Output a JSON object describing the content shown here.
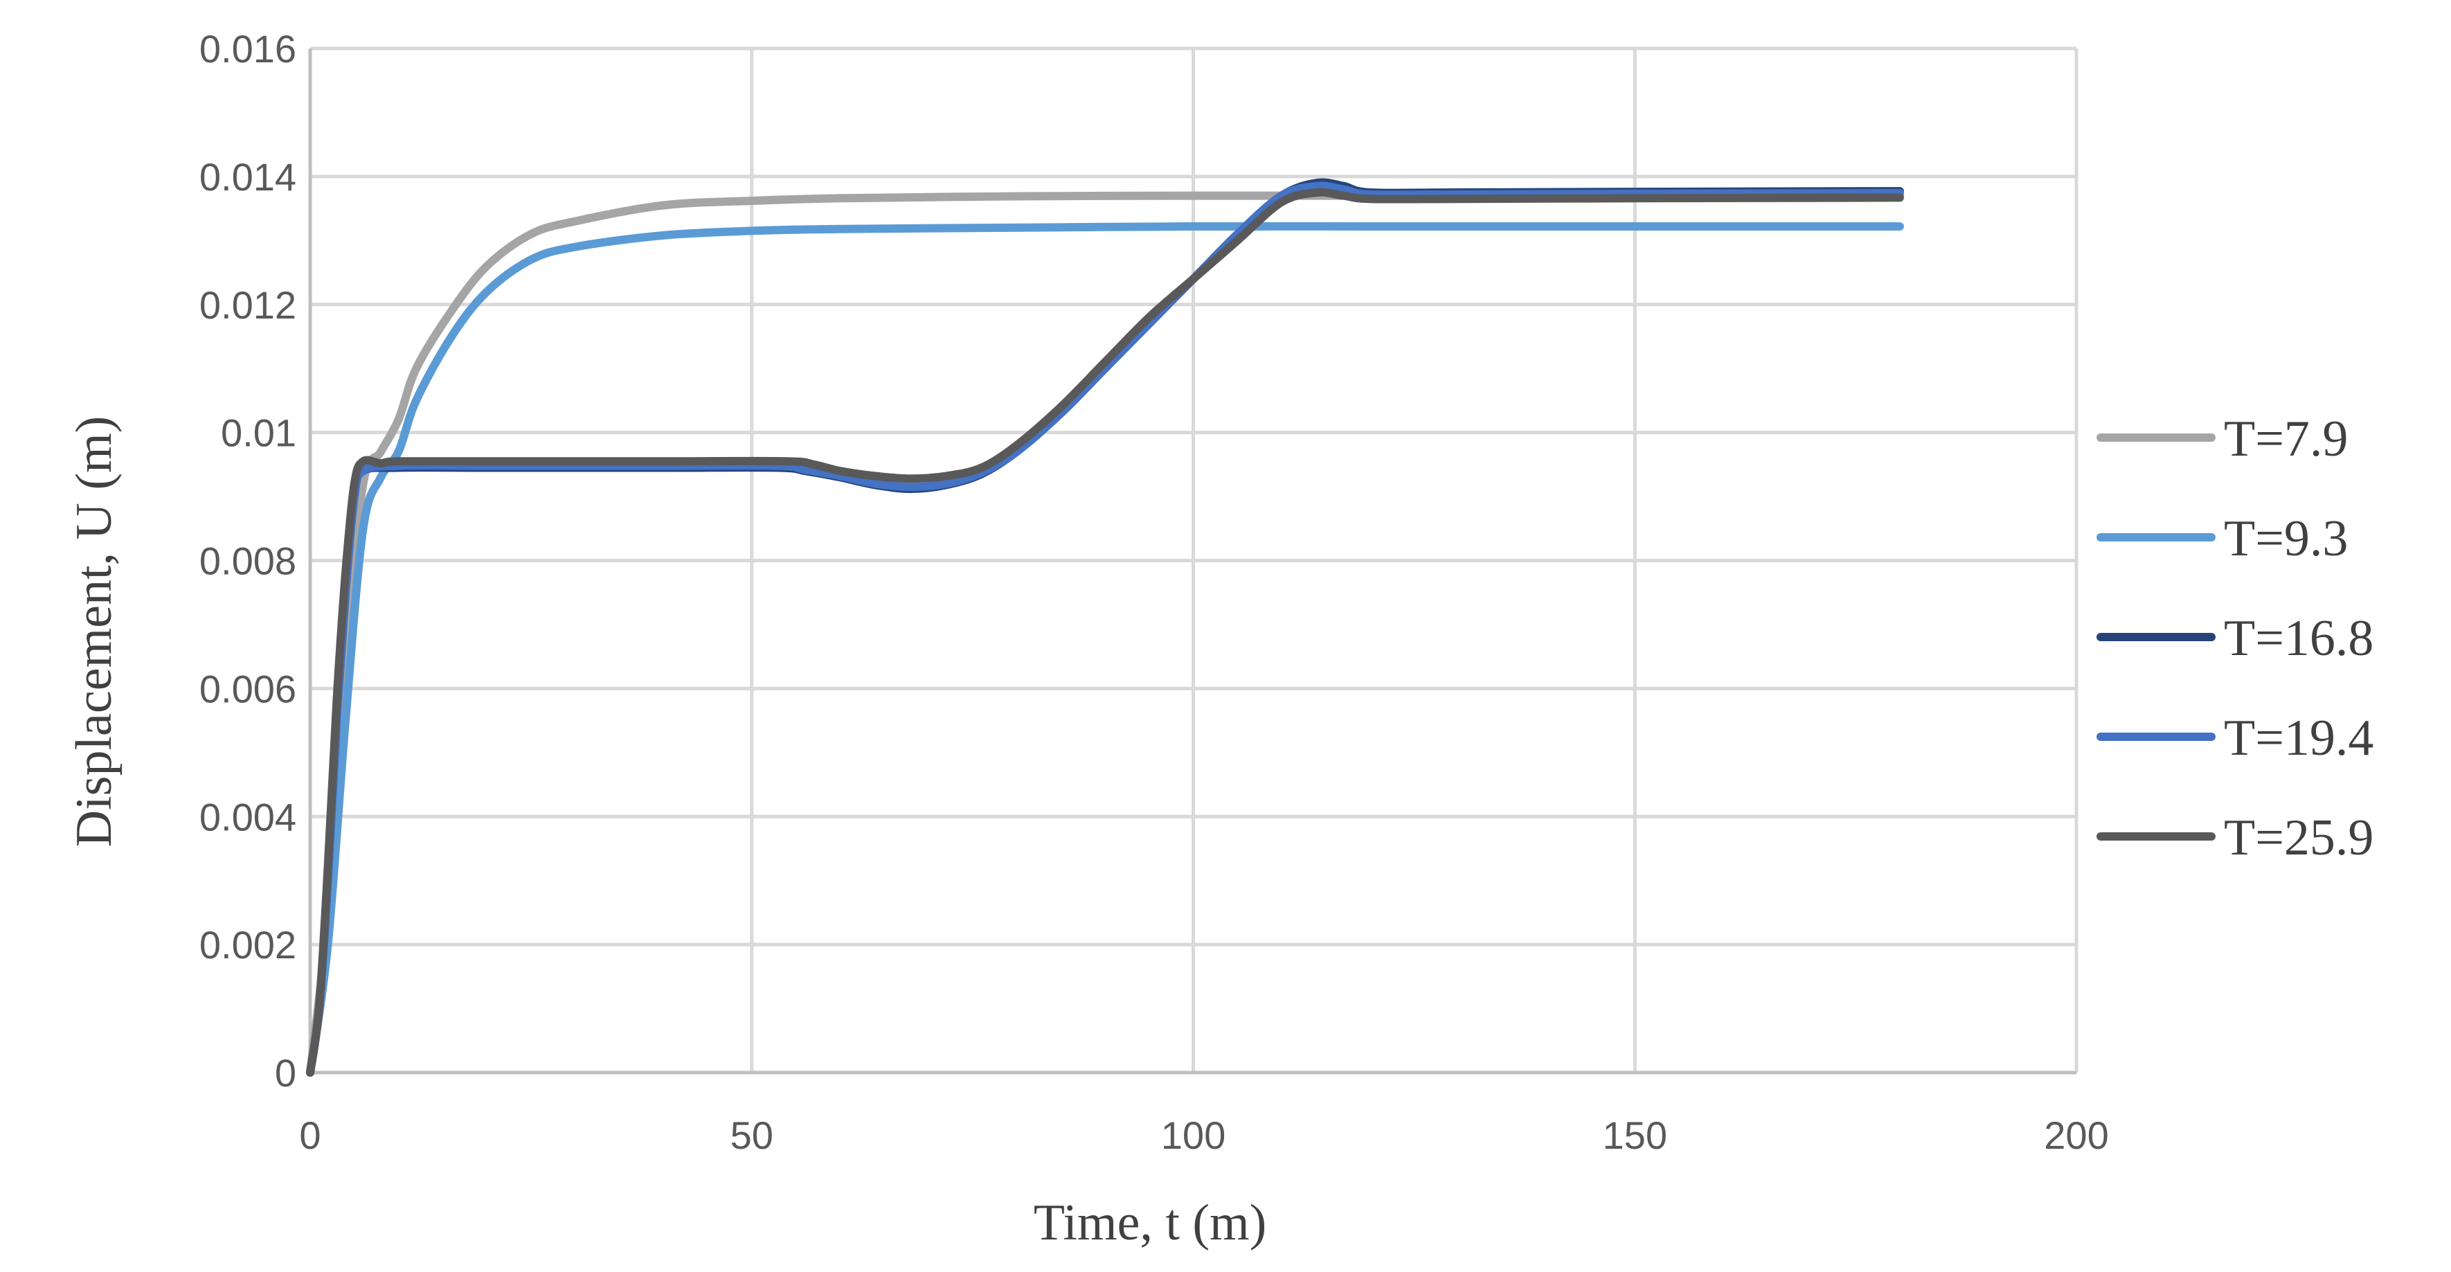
{
  "chart_data": {
    "type": "line",
    "title": "",
    "xlabel": "Time, t (m)",
    "ylabel": "Displacement, U (m)",
    "xlim": [
      0,
      200
    ],
    "ylim": [
      0,
      0.016
    ],
    "x_ticks": [
      0,
      50,
      100,
      150,
      200
    ],
    "y_ticks": [
      0,
      0.002,
      0.004,
      0.006,
      0.008,
      0.01,
      0.012,
      0.014,
      0.016
    ],
    "x_tick_labels": [
      "0",
      "50",
      "100",
      "150",
      "200"
    ],
    "y_tick_labels": [
      "0",
      "0.002",
      "0.004",
      "0.006",
      "0.008",
      "0.01",
      "0.012",
      "0.014",
      "0.016"
    ],
    "grid": true,
    "legend_position": "right",
    "series": [
      {
        "name": "T=7.9",
        "color": "#a5a5a5",
        "points": [
          [
            0,
            0
          ],
          [
            2,
            0.0025
          ],
          [
            4,
            0.0065
          ],
          [
            6,
            0.0092
          ],
          [
            8,
            0.0097
          ],
          [
            10,
            0.0102
          ],
          [
            12,
            0.011
          ],
          [
            16,
            0.0119
          ],
          [
            20,
            0.0126
          ],
          [
            25,
            0.0131
          ],
          [
            30,
            0.0133
          ],
          [
            40,
            0.01355
          ],
          [
            50,
            0.01362
          ],
          [
            60,
            0.01366
          ],
          [
            80,
            0.01369
          ],
          [
            100,
            0.0137
          ],
          [
            120,
            0.0137
          ],
          [
            140,
            0.0137
          ],
          [
            160,
            0.0137
          ],
          [
            180,
            0.0137
          ]
        ]
      },
      {
        "name": "T=9.3",
        "color": "#5b9bd5",
        "points": [
          [
            0,
            0
          ],
          [
            2,
            0.002
          ],
          [
            4,
            0.0055
          ],
          [
            6,
            0.0085
          ],
          [
            8,
            0.0093
          ],
          [
            10,
            0.0097
          ],
          [
            12,
            0.0105
          ],
          [
            16,
            0.0115
          ],
          [
            20,
            0.0122
          ],
          [
            25,
            0.0127
          ],
          [
            30,
            0.0129
          ],
          [
            40,
            0.01308
          ],
          [
            50,
            0.01315
          ],
          [
            60,
            0.01318
          ],
          [
            80,
            0.0132
          ],
          [
            100,
            0.01322
          ],
          [
            120,
            0.01322
          ],
          [
            140,
            0.01322
          ],
          [
            160,
            0.01322
          ],
          [
            180,
            0.01322
          ]
        ]
      },
      {
        "name": "T=16.8",
        "color": "#264478",
        "points": [
          [
            0,
            0
          ],
          [
            1,
            0.001
          ],
          [
            2,
            0.003
          ],
          [
            3,
            0.0055
          ],
          [
            4,
            0.0075
          ],
          [
            5,
            0.009
          ],
          [
            6,
            0.0094
          ],
          [
            10,
            0.00945
          ],
          [
            20,
            0.00945
          ],
          [
            40,
            0.00945
          ],
          [
            53,
            0.00945
          ],
          [
            56,
            0.0094
          ],
          [
            60,
            0.0093
          ],
          [
            64,
            0.00918
          ],
          [
            68,
            0.00912
          ],
          [
            72,
            0.00918
          ],
          [
            76,
            0.00935
          ],
          [
            80,
            0.0097
          ],
          [
            85,
            0.0103
          ],
          [
            90,
            0.011
          ],
          [
            95,
            0.0117
          ],
          [
            100,
            0.0124
          ],
          [
            105,
            0.0131
          ],
          [
            110,
            0.0137
          ],
          [
            114,
            0.0139
          ],
          [
            117,
            0.01385
          ],
          [
            120,
            0.01375
          ],
          [
            130,
            0.01375
          ],
          [
            150,
            0.01376
          ],
          [
            180,
            0.01377
          ]
        ]
      },
      {
        "name": "T=19.4",
        "color": "#4472c4",
        "points": [
          [
            0,
            0
          ],
          [
            1,
            0.001
          ],
          [
            2,
            0.003
          ],
          [
            3,
            0.0055
          ],
          [
            4,
            0.0075
          ],
          [
            5,
            0.009
          ],
          [
            6,
            0.0094
          ],
          [
            10,
            0.00948
          ],
          [
            20,
            0.00948
          ],
          [
            40,
            0.00948
          ],
          [
            53,
            0.00948
          ],
          [
            56,
            0.00942
          ],
          [
            60,
            0.00932
          ],
          [
            64,
            0.0092
          ],
          [
            68,
            0.00915
          ],
          [
            72,
            0.0092
          ],
          [
            76,
            0.00937
          ],
          [
            80,
            0.0097
          ],
          [
            85,
            0.0103
          ],
          [
            90,
            0.011
          ],
          [
            95,
            0.0117
          ],
          [
            100,
            0.0124
          ],
          [
            105,
            0.0131
          ],
          [
            110,
            0.0137
          ],
          [
            114,
            0.01385
          ],
          [
            117,
            0.0138
          ],
          [
            120,
            0.01372
          ],
          [
            130,
            0.01372
          ],
          [
            150,
            0.01373
          ],
          [
            180,
            0.01374
          ]
        ]
      },
      {
        "name": "T=25.9",
        "color": "#595959",
        "points": [
          [
            0,
            0
          ],
          [
            1,
            0.001
          ],
          [
            2,
            0.0032
          ],
          [
            3,
            0.0058
          ],
          [
            4,
            0.0078
          ],
          [
            5,
            0.0092
          ],
          [
            6,
            0.00955
          ],
          [
            8,
            0.00952
          ],
          [
            10,
            0.00955
          ],
          [
            20,
            0.00955
          ],
          [
            40,
            0.00955
          ],
          [
            54,
            0.00955
          ],
          [
            57,
            0.0095
          ],
          [
            60,
            0.0094
          ],
          [
            64,
            0.00932
          ],
          [
            68,
            0.00928
          ],
          [
            72,
            0.00932
          ],
          [
            76,
            0.00945
          ],
          [
            80,
            0.0098
          ],
          [
            85,
            0.0104
          ],
          [
            90,
            0.0111
          ],
          [
            95,
            0.0118
          ],
          [
            100,
            0.0124
          ],
          [
            105,
            0.013
          ],
          [
            110,
            0.0136
          ],
          [
            114,
            0.01375
          ],
          [
            117,
            0.0137
          ],
          [
            120,
            0.01365
          ],
          [
            130,
            0.01365
          ],
          [
            150,
            0.01366
          ],
          [
            180,
            0.01367
          ]
        ]
      }
    ]
  }
}
